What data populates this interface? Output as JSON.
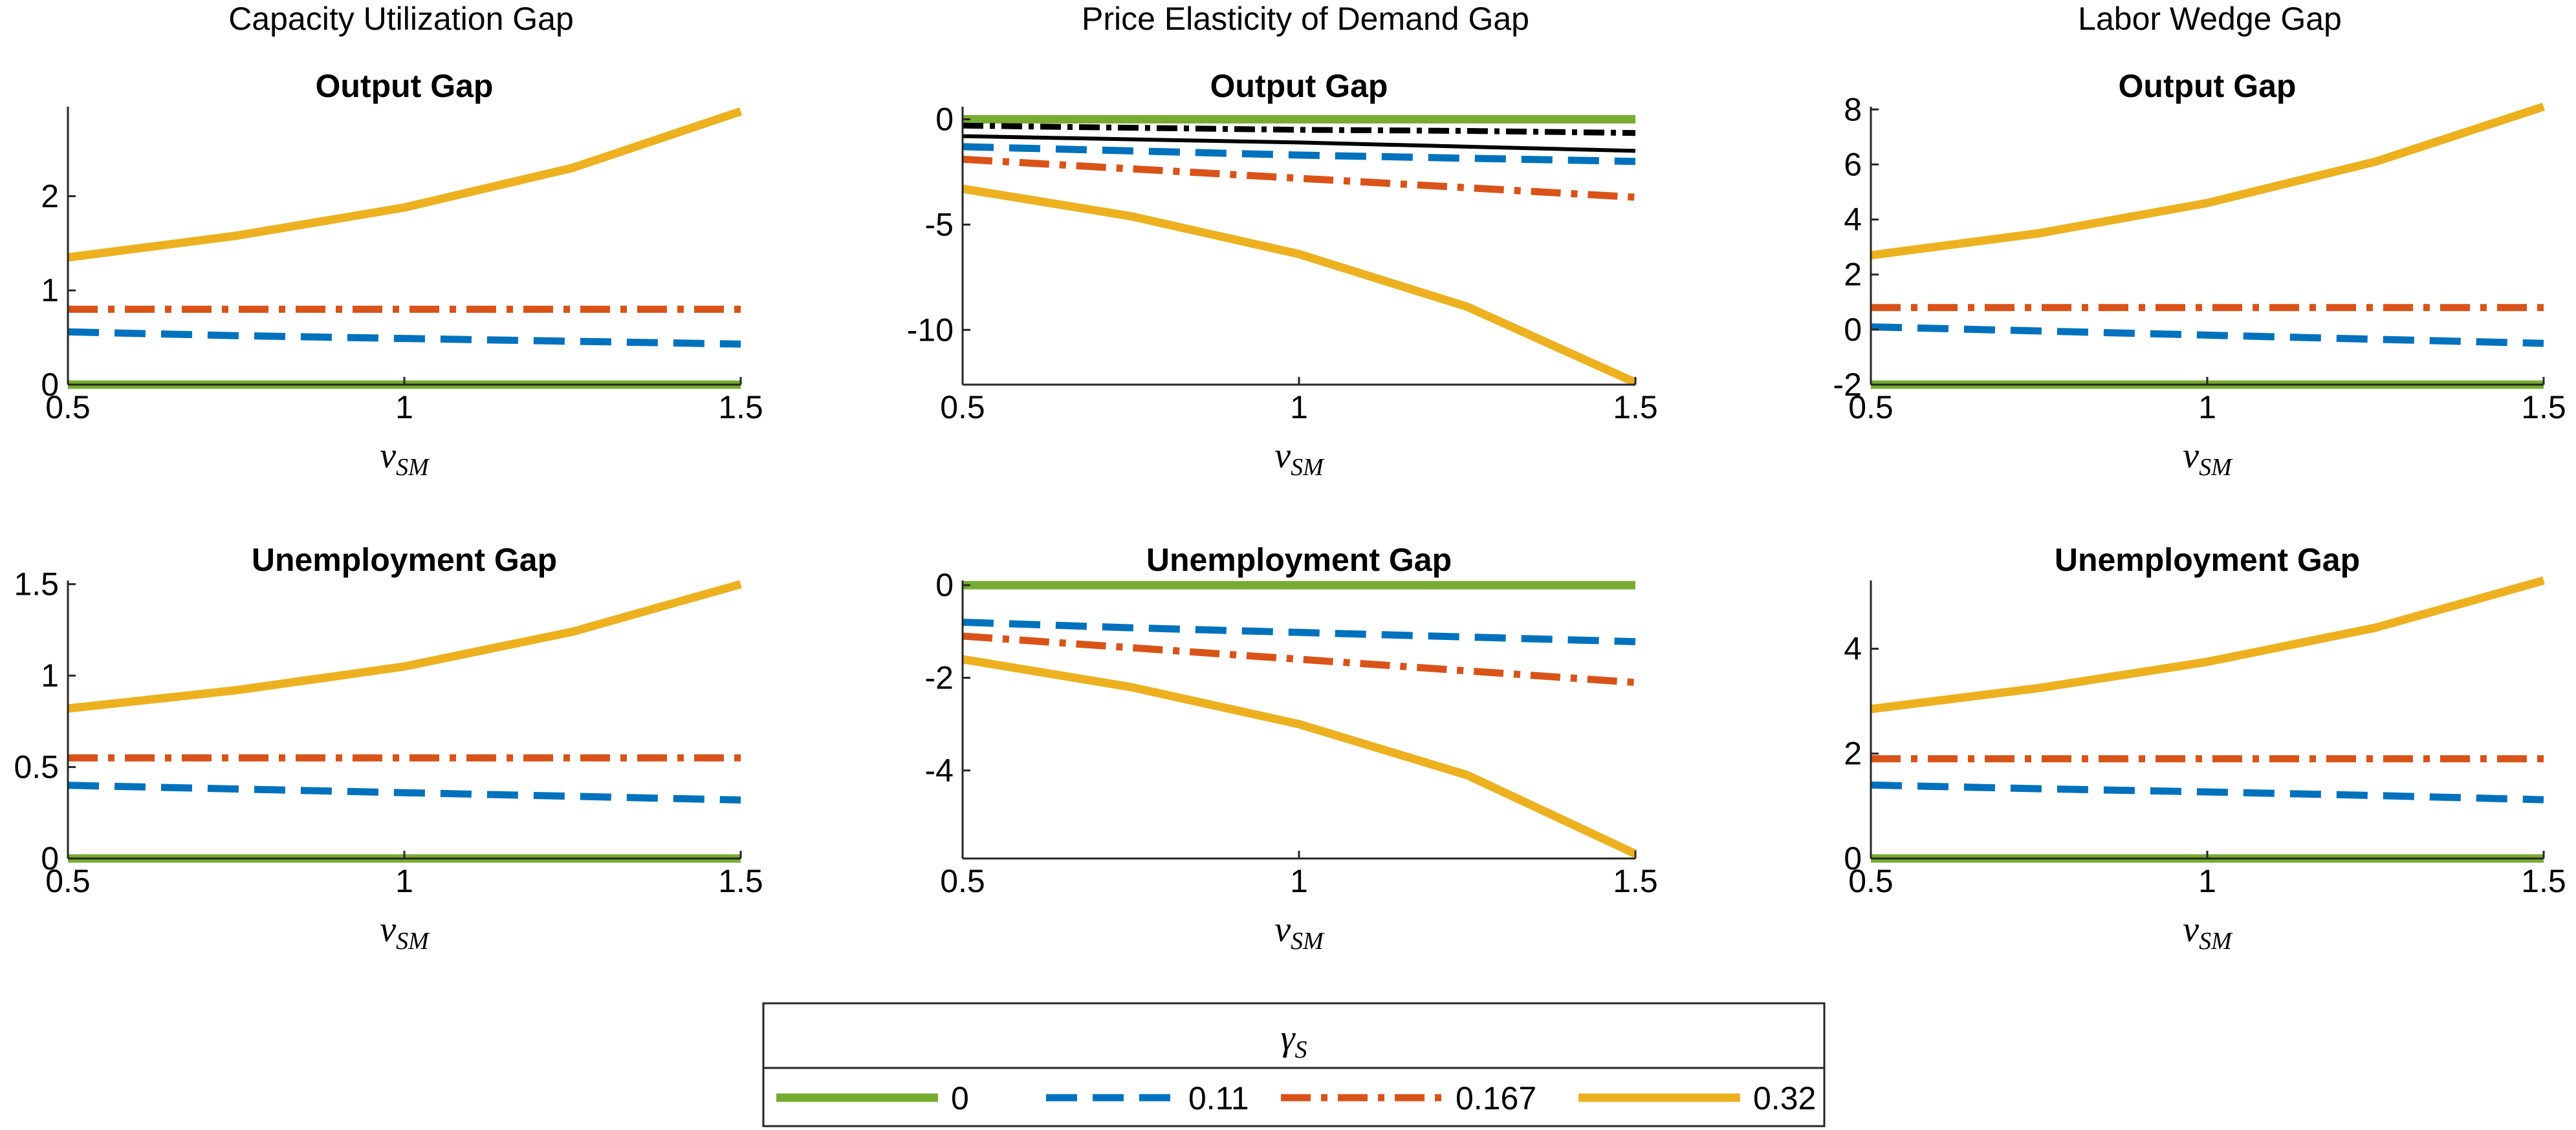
{
  "column_titles": [
    "Capacity Utilization Gap",
    "Price Elasticity of Demand Gap",
    "Labor Wedge Gap"
  ],
  "legend": {
    "title": "γ",
    "title_sub": "S",
    "entries": [
      {
        "label": "0",
        "color": "#77AC30",
        "style": "solid"
      },
      {
        "label": "0.11",
        "color": "#0072BD",
        "style": "dashed"
      },
      {
        "label": "0.167",
        "color": "#D95319",
        "style": "dashdot"
      },
      {
        "label": "0.32",
        "color": "#EDB120",
        "style": "solid"
      }
    ]
  },
  "chart_data": [
    {
      "type": "line",
      "title": "Output Gap",
      "column": "Capacity Utilization Gap",
      "xlabel": "ν",
      "xlabel_sub": "SM",
      "xlim": [
        0.5,
        1.5
      ],
      "ylim": [
        0,
        2.95
      ],
      "xticks": [
        0.5,
        1,
        1.5
      ],
      "xtick_labels": [
        "0.5",
        "1",
        "1.5"
      ],
      "yticks": [
        0,
        1,
        2
      ],
      "ytick_labels": [
        "0",
        "1",
        "2"
      ],
      "x": [
        0.5,
        0.75,
        1.0,
        1.25,
        1.5
      ],
      "series": [
        {
          "name": "0",
          "values": [
            0,
            0,
            0,
            0,
            0
          ],
          "color": "#77AC30",
          "style": "solid"
        },
        {
          "name": "0.11",
          "values": [
            0.56,
            0.52,
            0.49,
            0.46,
            0.43
          ],
          "color": "#0072BD",
          "style": "dashed"
        },
        {
          "name": "0.167",
          "values": [
            0.8,
            0.8,
            0.8,
            0.8,
            0.8
          ],
          "color": "#D95319",
          "style": "dashdot"
        },
        {
          "name": "0.32",
          "values": [
            1.35,
            1.58,
            1.88,
            2.3,
            2.9
          ],
          "color": "#EDB120",
          "style": "solid"
        }
      ]
    },
    {
      "type": "line",
      "title": "Output Gap",
      "column": "Price Elasticity of Demand Gap",
      "xlabel": "ν",
      "xlabel_sub": "SM",
      "xlim": [
        0.5,
        1.5
      ],
      "ylim": [
        -12.6,
        0.6
      ],
      "xticks": [
        0.5,
        1,
        1.5
      ],
      "xtick_labels": [
        "0.5",
        "1",
        "1.5"
      ],
      "yticks": [
        -10,
        -5,
        0
      ],
      "ytick_labels": [
        "-10",
        "-5",
        "0"
      ],
      "x": [
        0.5,
        0.75,
        1.0,
        1.25,
        1.5
      ],
      "series": [
        {
          "values": [
            0,
            0,
            0,
            0,
            0
          ],
          "color": "#77AC30",
          "style": "solid"
        },
        {
          "values": [
            -0.3,
            -0.4,
            -0.5,
            -0.55,
            -0.65
          ],
          "color": "#000000",
          "style": "densedashdot"
        },
        {
          "values": [
            -0.8,
            -0.95,
            -1.1,
            -1.3,
            -1.5
          ],
          "color": "#000000",
          "style": "thin"
        },
        {
          "values": [
            -1.3,
            -1.5,
            -1.7,
            -1.85,
            -2.0
          ],
          "color": "#0072BD",
          "style": "dashed"
        },
        {
          "values": [
            -1.9,
            -2.35,
            -2.8,
            -3.25,
            -3.7
          ],
          "color": "#D95319",
          "style": "dashdot"
        },
        {
          "values": [
            -3.3,
            -4.6,
            -6.4,
            -8.9,
            -12.5
          ],
          "color": "#EDB120",
          "style": "solid"
        }
      ]
    },
    {
      "type": "line",
      "title": "Output Gap",
      "column": "Labor Wedge Gap",
      "xlabel": "ν",
      "xlabel_sub": "SM",
      "xlim": [
        0.5,
        1.5
      ],
      "ylim": [
        -2,
        8.1
      ],
      "xticks": [
        0.5,
        1,
        1.5
      ],
      "xtick_labels": [
        "0.5",
        "1",
        "1.5"
      ],
      "yticks": [
        -2,
        0,
        2,
        4,
        6,
        8
      ],
      "ytick_labels": [
        "-2",
        "0",
        "2",
        "4",
        "6",
        "8"
      ],
      "x": [
        0.5,
        0.75,
        1.0,
        1.25,
        1.5
      ],
      "series": [
        {
          "values": [
            -2,
            -2,
            -2,
            -2,
            -2
          ],
          "color": "#77AC30",
          "style": "solid"
        },
        {
          "values": [
            0.1,
            -0.05,
            -0.2,
            -0.35,
            -0.5
          ],
          "color": "#0072BD",
          "style": "dashed"
        },
        {
          "values": [
            0.8,
            0.8,
            0.8,
            0.8,
            0.8
          ],
          "color": "#D95319",
          "style": "dashdot"
        },
        {
          "values": [
            2.7,
            3.5,
            4.6,
            6.1,
            8.1
          ],
          "color": "#EDB120",
          "style": "solid"
        }
      ]
    },
    {
      "type": "line",
      "title": "Unemployment Gap",
      "column": "Capacity Utilization Gap",
      "xlabel": "ν",
      "xlabel_sub": "SM",
      "xlim": [
        0.5,
        1.5
      ],
      "ylim": [
        0,
        1.52
      ],
      "xticks": [
        0.5,
        1,
        1.5
      ],
      "xtick_labels": [
        "0.5",
        "1",
        "1.5"
      ],
      "yticks": [
        0,
        0.5,
        1,
        1.5
      ],
      "ytick_labels": [
        "0",
        "0.5",
        "1",
        "1.5"
      ],
      "x": [
        0.5,
        0.75,
        1.0,
        1.25,
        1.5
      ],
      "series": [
        {
          "values": [
            0,
            0,
            0,
            0,
            0
          ],
          "color": "#77AC30",
          "style": "solid"
        },
        {
          "values": [
            0.4,
            0.38,
            0.36,
            0.34,
            0.32
          ],
          "color": "#0072BD",
          "style": "dashed"
        },
        {
          "values": [
            0.55,
            0.55,
            0.55,
            0.55,
            0.55
          ],
          "color": "#D95319",
          "style": "dashdot"
        },
        {
          "values": [
            0.82,
            0.92,
            1.05,
            1.24,
            1.5
          ],
          "color": "#EDB120",
          "style": "solid"
        }
      ]
    },
    {
      "type": "line",
      "title": "Unemployment Gap",
      "column": "Price Elasticity of Demand Gap",
      "xlabel": "ν",
      "xlabel_sub": "SM",
      "xlim": [
        0.5,
        1.5
      ],
      "ylim": [
        -5.9,
        0.1
      ],
      "xticks": [
        0.5,
        1,
        1.5
      ],
      "xtick_labels": [
        "0.5",
        "1",
        "1.5"
      ],
      "yticks": [
        -4,
        -2,
        0
      ],
      "ytick_labels": [
        "-4",
        "-2",
        "0"
      ],
      "x": [
        0.5,
        0.75,
        1.0,
        1.25,
        1.5
      ],
      "series": [
        {
          "values": [
            0,
            0,
            0,
            0,
            0
          ],
          "color": "#77AC30",
          "style": "solid"
        },
        {
          "values": [
            -0.8,
            -0.92,
            -1.02,
            -1.12,
            -1.22
          ],
          "color": "#0072BD",
          "style": "dashed"
        },
        {
          "values": [
            -1.1,
            -1.35,
            -1.6,
            -1.85,
            -2.1
          ],
          "color": "#D95319",
          "style": "dashdot"
        },
        {
          "values": [
            -1.6,
            -2.2,
            -3.0,
            -4.1,
            -5.8
          ],
          "color": "#EDB120",
          "style": "solid"
        }
      ]
    },
    {
      "type": "line",
      "title": "Unemployment Gap",
      "column": "Labor Wedge Gap",
      "xlabel": "ν",
      "xlabel_sub": "SM",
      "xlim": [
        0.5,
        1.5
      ],
      "ylim": [
        0,
        5.3
      ],
      "xticks": [
        0.5,
        1,
        1.5
      ],
      "xtick_labels": [
        "0.5",
        "1",
        "1.5"
      ],
      "yticks": [
        0,
        2,
        4
      ],
      "ytick_labels": [
        "0",
        "2",
        "4"
      ],
      "x": [
        0.5,
        0.75,
        1.0,
        1.25,
        1.5
      ],
      "series": [
        {
          "values": [
            0,
            0,
            0,
            0,
            0
          ],
          "color": "#77AC30",
          "style": "solid"
        },
        {
          "values": [
            1.4,
            1.33,
            1.27,
            1.2,
            1.12
          ],
          "color": "#0072BD",
          "style": "dashed"
        },
        {
          "values": [
            1.9,
            1.9,
            1.9,
            1.9,
            1.9
          ],
          "color": "#D95319",
          "style": "dashdot"
        },
        {
          "values": [
            2.85,
            3.25,
            3.75,
            4.4,
            5.3
          ],
          "color": "#EDB120",
          "style": "solid"
        }
      ]
    }
  ]
}
